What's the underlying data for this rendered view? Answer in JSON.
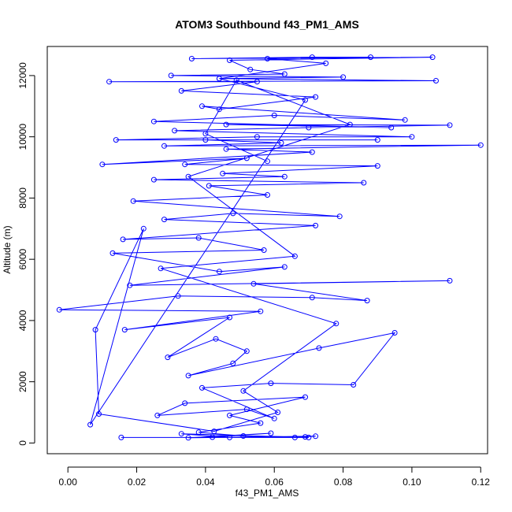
{
  "chart_data": {
    "type": "scatter",
    "title": "ATOM3 Southbound f43_PM1_AMS",
    "xlabel": "f43_PM1_AMS",
    "ylabel": "Altitude (m)",
    "xlim": [
      -0.006,
      0.122
    ],
    "ylim": [
      -350,
      12950
    ],
    "x_ticks": [
      0.0,
      0.02,
      0.04,
      0.06,
      0.08,
      0.1,
      0.12
    ],
    "x_tick_labels": [
      "0.00",
      "0.02",
      "0.04",
      "0.06",
      "0.08",
      "0.10",
      "0.12"
    ],
    "y_ticks": [
      0,
      2000,
      4000,
      6000,
      8000,
      10000,
      12000
    ],
    "y_tick_labels": [
      "0",
      "2000",
      "4000",
      "6000",
      "8000",
      "10000",
      "12000"
    ],
    "grid": false,
    "legend": "none",
    "connected": true,
    "marker": "open-circle",
    "series": [
      {
        "color": "#0000ff",
        "points": [
          [
            0.0155,
            180
          ],
          [
            0.07,
            180
          ],
          [
            0.033,
            300
          ],
          [
            0.047,
            180
          ],
          [
            0.069,
            200
          ],
          [
            0.072,
            220
          ],
          [
            0.035,
            170
          ],
          [
            0.059,
            320
          ],
          [
            0.042,
            190
          ],
          [
            0.066,
            180
          ],
          [
            0.051,
            230
          ],
          [
            0.038,
            350
          ],
          [
            0.056,
            650
          ],
          [
            0.047,
            900
          ],
          [
            0.069,
            1500
          ],
          [
            0.034,
            1300
          ],
          [
            0.026,
            900
          ],
          [
            0.052,
            1100
          ],
          [
            0.06,
            800
          ],
          [
            0.039,
            1800
          ],
          [
            0.059,
            1950
          ],
          [
            0.083,
            1900
          ],
          [
            0.095,
            3600
          ],
          [
            0.073,
            3100
          ],
          [
            0.035,
            2200
          ],
          [
            0.048,
            2600
          ],
          [
            0.052,
            3000
          ],
          [
            0.043,
            3400
          ],
          [
            0.029,
            2800
          ],
          [
            0.047,
            4100
          ],
          [
            0.0165,
            3700
          ],
          [
            0.056,
            4300
          ],
          [
            -0.0025,
            4350
          ],
          [
            0.032,
            4800
          ],
          [
            0.071,
            4750
          ],
          [
            0.087,
            4650
          ],
          [
            0.054,
            5200
          ],
          [
            0.111,
            5300
          ],
          [
            0.018,
            5150
          ],
          [
            0.063,
            5750
          ],
          [
            0.044,
            5600
          ],
          [
            0.013,
            6200
          ],
          [
            0.057,
            6300
          ],
          [
            0.038,
            6700
          ],
          [
            0.016,
            6650
          ],
          [
            0.072,
            7100
          ],
          [
            0.028,
            7300
          ],
          [
            0.048,
            7500
          ],
          [
            0.079,
            7400
          ],
          [
            0.019,
            7900
          ],
          [
            0.058,
            8100
          ],
          [
            0.041,
            8400
          ],
          [
            0.086,
            8500
          ],
          [
            0.025,
            8600
          ],
          [
            0.063,
            8700
          ],
          [
            0.045,
            8800
          ],
          [
            0.09,
            9050
          ],
          [
            0.034,
            9100
          ],
          [
            0.052,
            9300
          ],
          [
            0.01,
            9100
          ],
          [
            0.071,
            9500
          ],
          [
            0.046,
            9600
          ],
          [
            0.12,
            9730
          ],
          [
            0.028,
            9700
          ],
          [
            0.062,
            9800
          ],
          [
            0.04,
            9900
          ],
          [
            0.09,
            9900
          ],
          [
            0.014,
            9900
          ],
          [
            0.055,
            10000
          ],
          [
            0.1,
            10000
          ],
          [
            0.031,
            10200
          ],
          [
            0.07,
            10300
          ],
          [
            0.111,
            10380
          ],
          [
            0.046,
            10400
          ],
          [
            0.094,
            10300
          ],
          [
            0.025,
            10500
          ],
          [
            0.06,
            10700
          ],
          [
            0.098,
            10550
          ],
          [
            0.039,
            11000
          ],
          [
            0.044,
            10900
          ],
          [
            0.072,
            11300
          ],
          [
            0.033,
            11500
          ],
          [
            0.055,
            11800
          ],
          [
            0.012,
            11800
          ],
          [
            0.107,
            11830
          ],
          [
            0.044,
            11900
          ],
          [
            0.08,
            11950
          ],
          [
            0.03,
            12000
          ],
          [
            0.063,
            12050
          ],
          [
            0.053,
            12200
          ],
          [
            0.047,
            12500
          ],
          [
            0.106,
            12600
          ],
          [
            0.036,
            12550
          ],
          [
            0.071,
            12600
          ],
          [
            0.088,
            12600
          ],
          [
            0.058,
            12550
          ],
          [
            0.075,
            12400
          ],
          [
            0.044,
            11900
          ],
          [
            0.069,
            11200
          ],
          [
            0.0065,
            600
          ],
          [
            0.022,
            7000
          ],
          [
            0.008,
            3700
          ],
          [
            0.009,
            950
          ],
          [
            0.0425,
            380
          ],
          [
            0.061,
            1000
          ],
          [
            0.051,
            1700
          ],
          [
            0.078,
            3900
          ],
          [
            0.027,
            5700
          ],
          [
            0.066,
            6100
          ],
          [
            0.035,
            8700
          ],
          [
            0.082,
            10400
          ],
          [
            0.049,
            11850
          ],
          [
            0.04,
            10100
          ],
          [
            0.058,
            9200
          ]
        ]
      }
    ]
  }
}
